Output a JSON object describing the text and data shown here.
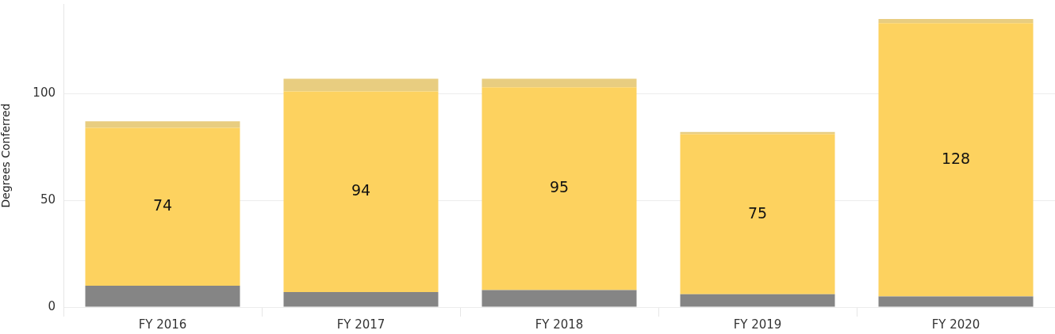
{
  "chart_data": {
    "type": "bar",
    "ylabel": "Degrees Conferred",
    "categories": [
      "FY 2016",
      "FY 2017",
      "FY 2018",
      "FY 2019",
      "FY 2020"
    ],
    "stacked": true,
    "series": [
      {
        "color": "#858585",
        "values": [
          10,
          7,
          8,
          6,
          5
        ]
      },
      {
        "color": "#fdd25f",
        "values": [
          74,
          94,
          95,
          75,
          128
        ],
        "value_labels": [
          "74",
          "94",
          "95",
          "75",
          "128"
        ]
      },
      {
        "color": "#e8cd80",
        "values": [
          3,
          6,
          4,
          1,
          2
        ]
      }
    ],
    "ylim": [
      0,
      142
    ],
    "yticks": [
      0,
      50,
      100
    ],
    "grid": "y"
  }
}
